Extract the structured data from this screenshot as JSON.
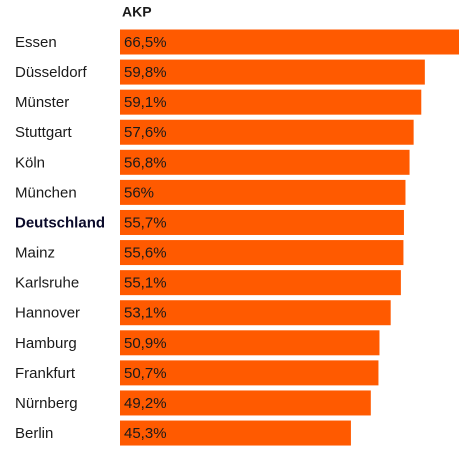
{
  "chart_data": {
    "type": "bar",
    "orientation": "horizontal",
    "categories": [
      "Essen",
      "Düsseldorf",
      "Münster",
      "Stuttgart",
      "Köln",
      "München",
      "Deutschland",
      "Mainz",
      "Karlsruhe",
      "Hannover",
      "Hamburg",
      "Frankfurt",
      "Nürnberg",
      "Berlin"
    ],
    "series": [
      {
        "name": "AKP",
        "color": "#ff5a00",
        "values": [
          66.5,
          59.8,
          59.1,
          57.6,
          56.8,
          56,
          55.7,
          55.6,
          55.1,
          53.1,
          50.9,
          50.7,
          49.2,
          45.3
        ],
        "value_labels": [
          "66,5%",
          "59,8%",
          "59,1%",
          "57,6%",
          "56,8%",
          "56%",
          "55,7%",
          "55,6%",
          "55,1%",
          "53,1%",
          "50,9%",
          "50,7%",
          "49,2%",
          "45,3%"
        ]
      }
    ],
    "highlight_index": 6
  }
}
